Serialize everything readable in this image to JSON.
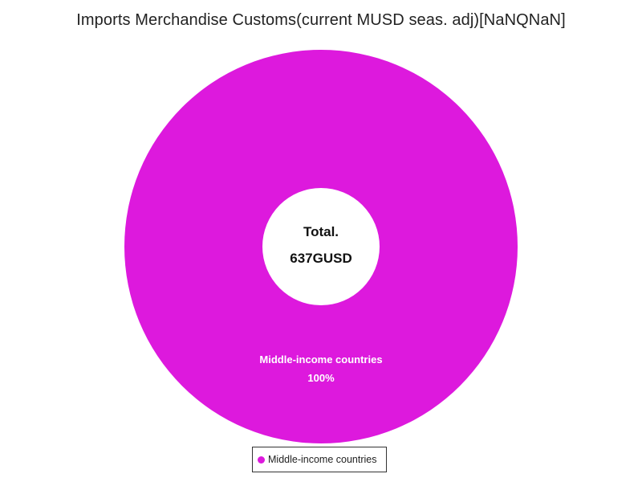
{
  "chart_data": {
    "type": "pie",
    "variant": "donut",
    "title": "Imports Merchandise Customs(current MUSD seas. adj)[NaNQNaN]",
    "center_label": {
      "line1": "Total.",
      "line2": "637GUSD"
    },
    "slices": [
      {
        "label": "Middle-income countries",
        "percent_label": "100%",
        "value": 100,
        "color": "#dd19dd"
      }
    ],
    "legend": {
      "position": "bottom-center",
      "entries": [
        "Middle-income countries"
      ]
    }
  }
}
